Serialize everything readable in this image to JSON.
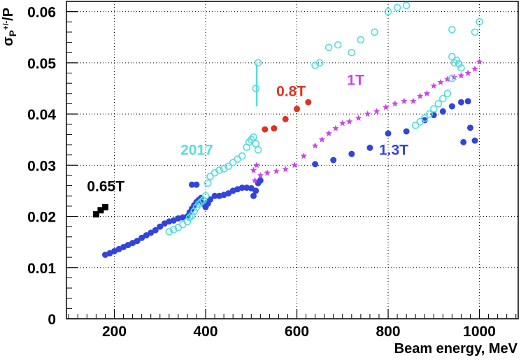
{
  "chart_data": {
    "type": "scatter",
    "title": "",
    "xlabel": "Beam energy, MeV",
    "ylabel_main": "σ",
    "ylabel_sub": "P",
    "ylabel_sup": "+/-",
    "ylabel_tail": "/P",
    "xlim": [
      95,
      1085
    ],
    "ylim": [
      0,
      0.062
    ],
    "x_ticks": [
      200,
      400,
      600,
      800,
      1000
    ],
    "x_tick_labels": [
      "200",
      "400",
      "600",
      "800",
      "1000"
    ],
    "y_ticks": [
      0,
      0.01,
      0.02,
      0.03,
      0.04,
      0.05,
      0.06
    ],
    "y_tick_labels": [
      "0",
      "0.01",
      "0.02",
      "0.03",
      "0.04",
      "0.05",
      "0.06"
    ],
    "grid": true,
    "series": [
      {
        "name": "0.65T",
        "color": "#000000",
        "marker": "square",
        "label_at": [
          140,
          0.0249
        ],
        "points": [
          [
            160,
            0.0204
          ],
          [
            170,
            0.0212
          ],
          [
            180,
            0.0218
          ]
        ]
      },
      {
        "name": "0.8T",
        "color": "#dd3322",
        "marker": "filled-circle",
        "label_at": [
          555,
          0.0435
        ],
        "points": [
          [
            530,
            0.037
          ],
          [
            550,
            0.0372
          ],
          [
            575,
            0.039
          ],
          [
            600,
            0.041
          ],
          [
            625,
            0.0423
          ]
        ]
      },
      {
        "name": "1T",
        "color": "#cc44ee",
        "marker": "star",
        "label_at": [
          710,
          0.0457
        ],
        "points": [
          [
            505,
            0.029
          ],
          [
            508,
            0.027
          ],
          [
            512,
            0.03
          ],
          [
            520,
            0.028
          ],
          [
            535,
            0.0285
          ],
          [
            555,
            0.0288
          ],
          [
            575,
            0.0292
          ],
          [
            595,
            0.03
          ],
          [
            615,
            0.0318
          ],
          [
            640,
            0.0338
          ],
          [
            655,
            0.035
          ],
          [
            670,
            0.0362
          ],
          [
            685,
            0.0372
          ],
          [
            700,
            0.0382
          ],
          [
            715,
            0.0385
          ],
          [
            735,
            0.0392
          ],
          [
            755,
            0.04
          ],
          [
            775,
            0.0405
          ],
          [
            795,
            0.0413
          ],
          [
            815,
            0.042
          ],
          [
            835,
            0.0425
          ],
          [
            855,
            0.0425
          ],
          [
            870,
            0.0435
          ],
          [
            885,
            0.044
          ],
          [
            900,
            0.0455
          ],
          [
            915,
            0.0462
          ],
          [
            930,
            0.0468
          ],
          [
            945,
            0.0472
          ],
          [
            960,
            0.0475
          ],
          [
            975,
            0.048
          ],
          [
            990,
            0.0488
          ],
          [
            1000,
            0.0502
          ]
        ]
      },
      {
        "name": "1.3T",
        "color": "#3344dd",
        "marker": "filled-circle",
        "label_at": [
          780,
          0.032
        ],
        "points": [
          [
            180,
            0.0125
          ],
          [
            190,
            0.0128
          ],
          [
            200,
            0.0132
          ],
          [
            210,
            0.0136
          ],
          [
            220,
            0.014
          ],
          [
            230,
            0.0144
          ],
          [
            240,
            0.0148
          ],
          [
            250,
            0.0152
          ],
          [
            260,
            0.0158
          ],
          [
            270,
            0.0163
          ],
          [
            280,
            0.0168
          ],
          [
            290,
            0.0173
          ],
          [
            300,
            0.018
          ],
          [
            310,
            0.0186
          ],
          [
            320,
            0.019
          ],
          [
            330,
            0.0192
          ],
          [
            340,
            0.0196
          ],
          [
            350,
            0.0198
          ],
          [
            360,
            0.02
          ],
          [
            365,
            0.0208
          ],
          [
            370,
            0.0215
          ],
          [
            375,
            0.0222
          ],
          [
            380,
            0.0228
          ],
          [
            385,
            0.0232
          ],
          [
            390,
            0.0236
          ],
          [
            395,
            0.0225
          ],
          [
            400,
            0.0218
          ],
          [
            405,
            0.0225
          ],
          [
            410,
            0.0233
          ],
          [
            420,
            0.024
          ],
          [
            430,
            0.024
          ],
          [
            440,
            0.0242
          ],
          [
            450,
            0.0245
          ],
          [
            460,
            0.025
          ],
          [
            470,
            0.0253
          ],
          [
            480,
            0.0256
          ],
          [
            490,
            0.0256
          ],
          [
            500,
            0.0255
          ],
          [
            505,
            0.024
          ],
          [
            510,
            0.025
          ],
          [
            515,
            0.0265
          ],
          [
            520,
            0.027
          ],
          [
            370,
            0.0262
          ],
          [
            380,
            0.0262
          ],
          [
            640,
            0.0302
          ],
          [
            680,
            0.031
          ],
          [
            720,
            0.0322
          ],
          [
            760,
            0.0334
          ],
          [
            800,
            0.0362
          ],
          [
            840,
            0.0366
          ],
          [
            880,
            0.0388
          ],
          [
            900,
            0.0398
          ],
          [
            920,
            0.0405
          ],
          [
            940,
            0.0415
          ],
          [
            960,
            0.0423
          ],
          [
            975,
            0.0425
          ],
          [
            965,
            0.0345
          ],
          [
            980,
            0.0373
          ],
          [
            990,
            0.0348
          ]
        ]
      },
      {
        "name": "2017",
        "color": "#55dddd",
        "marker": "open-circle",
        "label_at": [
          345,
          0.032
        ],
        "points": [
          [
            320,
            0.017
          ],
          [
            330,
            0.0174
          ],
          [
            340,
            0.0178
          ],
          [
            350,
            0.0184
          ],
          [
            360,
            0.019
          ],
          [
            365,
            0.0198
          ],
          [
            370,
            0.0202
          ],
          [
            375,
            0.021
          ],
          [
            380,
            0.0218
          ],
          [
            385,
            0.0224
          ],
          [
            390,
            0.0228
          ],
          [
            395,
            0.0232
          ],
          [
            400,
            0.024
          ],
          [
            405,
            0.0265
          ],
          [
            410,
            0.0278
          ],
          [
            420,
            0.0285
          ],
          [
            430,
            0.029
          ],
          [
            440,
            0.0293
          ],
          [
            450,
            0.0298
          ],
          [
            460,
            0.0305
          ],
          [
            470,
            0.0312
          ],
          [
            480,
            0.0318
          ],
          [
            490,
            0.0335
          ],
          [
            495,
            0.0345
          ],
          [
            500,
            0.035
          ],
          [
            505,
            0.0355
          ],
          [
            510,
            0.0342
          ],
          [
            515,
            0.033
          ],
          [
            510,
            0.045
          ],
          [
            515,
            0.05
          ],
          [
            640,
            0.0495
          ],
          [
            650,
            0.05
          ],
          [
            670,
            0.053
          ],
          [
            690,
            0.0535
          ],
          [
            720,
            0.052
          ],
          [
            740,
            0.0545
          ],
          [
            770,
            0.056
          ],
          [
            800,
            0.06
          ],
          [
            820,
            0.0608
          ],
          [
            840,
            0.0612
          ],
          [
            860,
            0.0378
          ],
          [
            870,
            0.0385
          ],
          [
            880,
            0.0392
          ],
          [
            890,
            0.04
          ],
          [
            900,
            0.041
          ],
          [
            910,
            0.042
          ],
          [
            920,
            0.043
          ],
          [
            930,
            0.044
          ],
          [
            940,
            0.047
          ],
          [
            945,
            0.05
          ],
          [
            950,
            0.0505
          ],
          [
            940,
            0.0512
          ],
          [
            955,
            0.0498
          ],
          [
            940,
            0.0565
          ],
          [
            960,
            0.049
          ],
          [
            990,
            0.056
          ],
          [
            1000,
            0.058
          ]
        ]
      }
    ],
    "error_bars": [
      {
        "series": "2017",
        "x": 512,
        "y": 0.045,
        "low": 0.0415,
        "high": 0.0498
      }
    ]
  }
}
